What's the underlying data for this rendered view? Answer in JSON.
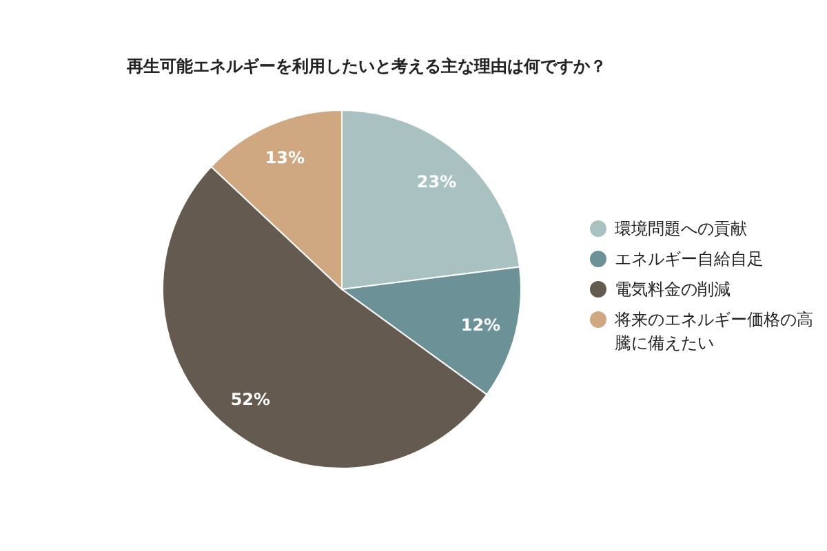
{
  "chart_data": {
    "type": "pie",
    "title": "再生可能エネルギーを利用したいと考える主な理由は何ですか？",
    "categories": [
      "環境問題への貢献",
      "エネルギー自給自足",
      "電気料金の削減",
      "将来のエネルギー価格の高騰に備えたい"
    ],
    "values": [
      23,
      12,
      52,
      13
    ],
    "value_labels": [
      "23%",
      "12%",
      "52%",
      "13%"
    ],
    "colors": [
      "#a9c1c1",
      "#6c9196",
      "#655a4f",
      "#cfa882"
    ],
    "legend": "right"
  }
}
